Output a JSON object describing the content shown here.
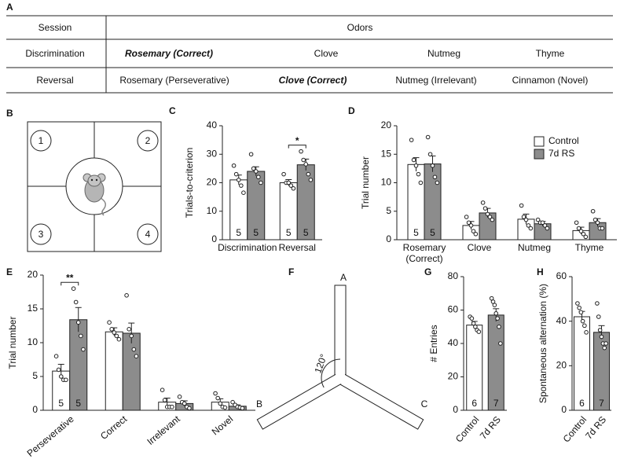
{
  "panels": [
    "A",
    "B",
    "C",
    "D",
    "E",
    "F",
    "G",
    "H"
  ],
  "table": {
    "header": [
      "Session",
      "Odors"
    ],
    "rows": [
      [
        "Discrimination",
        "Rosemary (Correct)",
        "Clove",
        "Nutmeg",
        "Thyme"
      ],
      [
        "Reversal",
        "Rosemary (Perseverative)",
        "Clove (Correct)",
        "Nutmeg (Irrelevant)",
        "Cinnamon (Novel)"
      ]
    ]
  },
  "maze_b": {
    "zones": [
      "1",
      "2",
      "3",
      "4"
    ]
  },
  "maze_f": {
    "arms": [
      "A",
      "B",
      "C"
    ],
    "angle_label": "120°"
  },
  "chart_data": [
    {
      "type": "bar",
      "ylabel": "Trials-to-criterion",
      "categories": [
        "Discrimination",
        "Reversal"
      ],
      "series": [
        {
          "name": "Control",
          "color": "#ffffff",
          "values": [
            21,
            20
          ],
          "errors": [
            1.7,
            1.1
          ],
          "points": [
            [
              26,
              23,
              21,
              19,
              16.5
            ],
            [
              23,
              20,
              20,
              19,
              18
            ]
          ],
          "n": [
            5,
            5
          ]
        },
        {
          "name": "7d RS",
          "color": "#8c8c8c",
          "values": [
            24,
            26.3
          ],
          "errors": [
            1.6,
            2.0
          ],
          "points": [
            [
              30,
              25,
              24,
              22,
              20
            ],
            [
              31,
              28,
              26.5,
              23,
              21
            ]
          ],
          "n": [
            5,
            5
          ]
        }
      ],
      "annotations": [
        null,
        "*"
      ],
      "ylim": [
        0,
        40
      ],
      "yticks": [
        0,
        10,
        20,
        30,
        40
      ]
    },
    {
      "type": "bar",
      "ylabel": "Trial number",
      "categories": [
        "Rosemary (Correct)",
        "Clove",
        "Nutmeg",
        "Thyme"
      ],
      "series": [
        {
          "name": "Control",
          "color": "#ffffff",
          "values": [
            13.2,
            2.5,
            3.6,
            1.6
          ],
          "errors": [
            1.2,
            0.7,
            0.9,
            0.6
          ],
          "points": [
            [
              17.5,
              14,
              13,
              11.5,
              10
            ],
            [
              4,
              3,
              2.5,
              1.5,
              1
            ],
            [
              6,
              4,
              3.5,
              2.5,
              2
            ],
            [
              3,
              2,
              1.5,
              1,
              0.5
            ]
          ],
          "n": [
            5,
            null,
            null,
            null
          ]
        },
        {
          "name": "7d RS",
          "color": "#8c8c8c",
          "values": [
            13.3,
            4.7,
            2.8,
            3.0
          ],
          "errors": [
            1.4,
            0.8,
            0.4,
            0.7
          ],
          "points": [
            [
              18,
              15,
              13,
              11,
              10
            ],
            [
              6.5,
              5.5,
              4.5,
              4,
              3.5
            ],
            [
              3.5,
              3,
              3,
              2.5,
              2
            ],
            [
              5,
              3.5,
              3,
              2,
              2
            ]
          ],
          "n": [
            5,
            null,
            null,
            null
          ]
        }
      ],
      "legend": "upper right",
      "ylim": [
        0,
        20
      ],
      "yticks": [
        0,
        5,
        10,
        15,
        20
      ]
    },
    {
      "type": "bar",
      "ylabel": "Trial number",
      "categories": [
        "Perseverative",
        "Correct",
        "Irrelevant",
        "Novel"
      ],
      "series": [
        {
          "name": "Control",
          "color": "#ffffff",
          "values": [
            5.8,
            11.6,
            1.2,
            1.2
          ],
          "errors": [
            1.0,
            0.6,
            0.6,
            0.5
          ],
          "points": [
            [
              8,
              6,
              5,
              4.5,
              4.5
            ],
            [
              13,
              12,
              11.5,
              11,
              10.5
            ],
            [
              3,
              1.5,
              0.5,
              0.5,
              0.5
            ],
            [
              2.5,
              1.8,
              1,
              0.5,
              0.4
            ]
          ],
          "n": [
            5,
            null,
            null,
            null
          ]
        },
        {
          "name": "7d RS",
          "color": "#8c8c8c",
          "values": [
            13.4,
            11.4,
            1.0,
            0.6
          ],
          "errors": [
            1.8,
            1.5,
            0.4,
            0.2
          ],
          "points": [
            [
              18,
              16,
              13,
              11,
              9
            ],
            [
              17,
              12,
              11,
              9,
              8
            ],
            [
              2,
              1.2,
              1,
              0.5,
              0.3
            ],
            [
              1.2,
              0.8,
              0.5,
              0.4,
              0.3
            ]
          ],
          "n": [
            5,
            null,
            null,
            null
          ]
        }
      ],
      "annotations": [
        "**",
        null,
        null,
        null
      ],
      "ylim": [
        0,
        20
      ],
      "yticks": [
        0,
        5,
        10,
        15,
        20
      ]
    },
    {
      "type": "bar",
      "ylabel": "# Entries",
      "categories": [
        "Control",
        "7d RS"
      ],
      "colors": [
        "#ffffff",
        "#8c8c8c"
      ],
      "values": [
        51,
        57
      ],
      "errors": [
        2.2,
        3.8
      ],
      "points": [
        [
          56,
          55,
          52,
          50,
          48,
          47
        ],
        [
          67,
          65,
          63,
          58,
          55,
          50,
          40
        ]
      ],
      "n": [
        6,
        7
      ],
      "ylim": [
        0,
        80
      ],
      "yticks": [
        0,
        20,
        40,
        60,
        80
      ]
    },
    {
      "type": "bar",
      "ylabel": "Spontaneous alternation (%)",
      "categories": [
        "Control",
        "7d RS"
      ],
      "colors": [
        "#ffffff",
        "#8c8c8c"
      ],
      "values": [
        42,
        35
      ],
      "errors": [
        2.4,
        3.0
      ],
      "points": [
        [
          48,
          46,
          44,
          40,
          38,
          35
        ],
        [
          48,
          42,
          36,
          33,
          30,
          28,
          30
        ]
      ],
      "n": [
        6,
        7
      ],
      "ylim": [
        0,
        60
      ],
      "yticks": [
        0,
        20,
        40,
        60
      ]
    }
  ]
}
